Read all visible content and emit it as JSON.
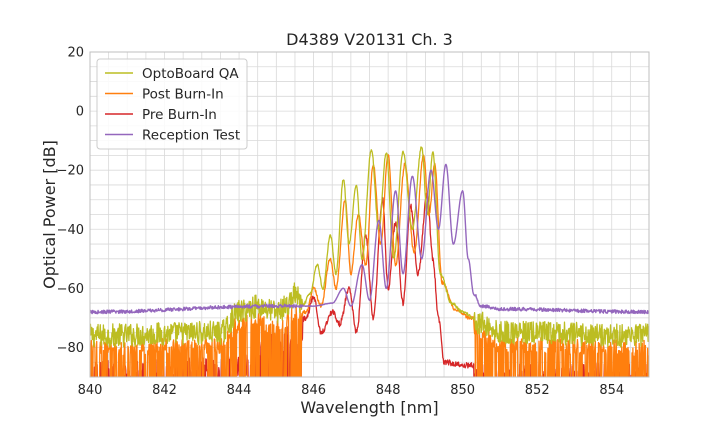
{
  "chart_data": {
    "type": "line",
    "title": "D4389 V20131 Ch. 3",
    "xlabel": "Wavelength [nm]",
    "ylabel": "Optical Power [dB]",
    "xlim": [
      840,
      855
    ],
    "ylim": [
      -90,
      20
    ],
    "xticks": [
      840,
      842,
      844,
      846,
      848,
      850,
      852,
      854
    ],
    "yticks": [
      20,
      0,
      -20,
      -40,
      -60,
      -80
    ],
    "grid": true,
    "legend_position": "top-left",
    "series": [
      {
        "name": "OptoBoard QA",
        "color": "#bcbd22",
        "noise_floor": -76,
        "noise_amp": 8,
        "points": [
          [
            840,
            -76
          ],
          [
            843.5,
            -75
          ],
          [
            844.0,
            -68
          ],
          [
            844.5,
            -66
          ],
          [
            845.0,
            -68
          ],
          [
            845.3,
            -66
          ],
          [
            845.5,
            -62
          ],
          [
            845.7,
            -66
          ],
          [
            845.9,
            -62
          ],
          [
            846.1,
            -52
          ],
          [
            846.25,
            -60
          ],
          [
            846.45,
            -42
          ],
          [
            846.6,
            -55
          ],
          [
            846.8,
            -23
          ],
          [
            846.95,
            -45
          ],
          [
            847.15,
            -25
          ],
          [
            847.3,
            -50
          ],
          [
            847.55,
            -13
          ],
          [
            847.75,
            -40
          ],
          [
            847.95,
            -14
          ],
          [
            848.15,
            -50
          ],
          [
            848.4,
            -14
          ],
          [
            848.65,
            -40
          ],
          [
            848.9,
            -12
          ],
          [
            849.05,
            -35
          ],
          [
            849.2,
            -14
          ],
          [
            849.4,
            -55
          ],
          [
            849.7,
            -65
          ],
          [
            850.0,
            -68
          ],
          [
            850.5,
            -72
          ],
          [
            851,
            -75
          ],
          [
            855,
            -76
          ]
        ]
      },
      {
        "name": "Post Burn-In",
        "color": "#ff7f0e",
        "noise_floor": -78,
        "noise_amp": 10,
        "points": [
          [
            840,
            -78
          ],
          [
            843.5,
            -77
          ],
          [
            844.0,
            -70
          ],
          [
            844.5,
            -69
          ],
          [
            845.0,
            -71
          ],
          [
            845.5,
            -67
          ],
          [
            845.8,
            -68
          ],
          [
            846.0,
            -60
          ],
          [
            846.2,
            -66
          ],
          [
            846.45,
            -50
          ],
          [
            846.6,
            -60
          ],
          [
            846.85,
            -30
          ],
          [
            847.0,
            -55
          ],
          [
            847.2,
            -35
          ],
          [
            847.4,
            -52
          ],
          [
            847.6,
            -18
          ],
          [
            847.8,
            -45
          ],
          [
            848.0,
            -15
          ],
          [
            848.2,
            -52
          ],
          [
            848.45,
            -18
          ],
          [
            848.7,
            -48
          ],
          [
            848.95,
            -15
          ],
          [
            849.1,
            -35
          ],
          [
            849.25,
            -18
          ],
          [
            849.45,
            -58
          ],
          [
            849.8,
            -67
          ],
          [
            850.2,
            -70
          ],
          [
            851,
            -77
          ],
          [
            855,
            -78
          ]
        ]
      },
      {
        "name": "Pre Burn-In",
        "color": "#d62728",
        "noise_floor": -90,
        "noise_amp": 16,
        "points": [
          [
            840,
            -85
          ],
          [
            844.0,
            -84
          ],
          [
            844.5,
            -78
          ],
          [
            845.0,
            -76
          ],
          [
            845.5,
            -72
          ],
          [
            845.8,
            -70
          ],
          [
            846.0,
            -63
          ],
          [
            846.2,
            -75
          ],
          [
            846.5,
            -68
          ],
          [
            846.7,
            -72
          ],
          [
            846.95,
            -60
          ],
          [
            847.15,
            -75
          ],
          [
            847.4,
            -42
          ],
          [
            847.6,
            -70
          ],
          [
            847.85,
            -30
          ],
          [
            848.0,
            -60
          ],
          [
            848.2,
            -38
          ],
          [
            848.4,
            -65
          ],
          [
            848.6,
            -32
          ],
          [
            848.8,
            -55
          ],
          [
            849.05,
            -28
          ],
          [
            849.2,
            -50
          ],
          [
            849.35,
            -70
          ],
          [
            849.5,
            -85
          ],
          [
            850,
            -86
          ],
          [
            855,
            -86
          ]
        ]
      },
      {
        "name": "Reception Test",
        "color": "#9467bd",
        "noise_floor": -68,
        "noise_amp": 1.2,
        "points": [
          [
            840,
            -68
          ],
          [
            845.0,
            -66
          ],
          [
            846.0,
            -66
          ],
          [
            846.5,
            -65
          ],
          [
            846.8,
            -60
          ],
          [
            847.0,
            -66
          ],
          [
            847.3,
            -52
          ],
          [
            847.5,
            -64
          ],
          [
            847.75,
            -37
          ],
          [
            847.95,
            -60
          ],
          [
            848.2,
            -27
          ],
          [
            848.4,
            -55
          ],
          [
            848.65,
            -22
          ],
          [
            848.9,
            -50
          ],
          [
            849.15,
            -20
          ],
          [
            849.35,
            -40
          ],
          [
            849.55,
            -18
          ],
          [
            849.75,
            -45
          ],
          [
            850.0,
            -27
          ],
          [
            850.15,
            -50
          ],
          [
            850.3,
            -62
          ],
          [
            850.5,
            -66
          ],
          [
            851,
            -67
          ],
          [
            855,
            -68
          ]
        ]
      }
    ]
  }
}
